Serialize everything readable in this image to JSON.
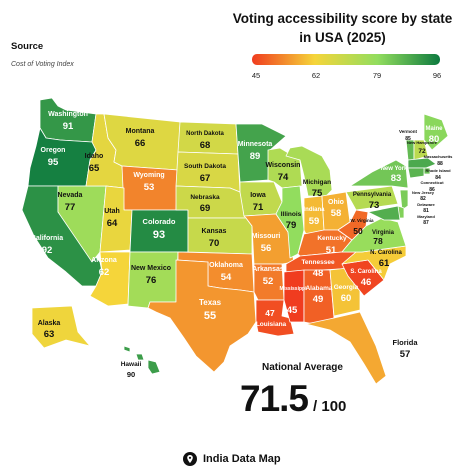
{
  "title": "Voting accessibility score by state in USA (2025)",
  "source": {
    "heading": "Source",
    "name": "Cost of Voting Index"
  },
  "legend": {
    "ticks": [
      "45",
      "62",
      "79",
      "96"
    ],
    "colors": [
      "#f03c1f",
      "#f5d53a",
      "#92dd5e",
      "#0d7a3f"
    ]
  },
  "national_average": {
    "label": "National Average",
    "value": "71.5",
    "suffix": "/ 100"
  },
  "brand": "India Data Map",
  "states": {
    "WA": {
      "name": "Washington",
      "score": "91"
    },
    "OR": {
      "name": "Oregon",
      "score": "95"
    },
    "CA": {
      "name": "California",
      "score": "92"
    },
    "NV": {
      "name": "Nevada",
      "score": "77"
    },
    "ID": {
      "name": "Idaho",
      "score": "65"
    },
    "MT": {
      "name": "Montana",
      "score": "66"
    },
    "WY": {
      "name": "Wyoming",
      "score": "53"
    },
    "UT": {
      "name": "Utah",
      "score": "64"
    },
    "AZ": {
      "name": "Arizona",
      "score": "62"
    },
    "CO": {
      "name": "Colorado",
      "score": "93"
    },
    "NM": {
      "name": "New Mexico",
      "score": "76"
    },
    "ND": {
      "name": "North Dakota",
      "score": "68"
    },
    "SD": {
      "name": "South Dakota",
      "score": "67"
    },
    "NE": {
      "name": "Nebraska",
      "score": "69"
    },
    "KS": {
      "name": "Kansas",
      "score": "70"
    },
    "OK": {
      "name": "Oklahoma",
      "score": "54"
    },
    "TX": {
      "name": "Texas",
      "score": "55"
    },
    "MN": {
      "name": "Minnesota",
      "score": "89"
    },
    "IA": {
      "name": "Iowa",
      "score": "71"
    },
    "MO": {
      "name": "Missouri",
      "score": "56"
    },
    "AR": {
      "name": "Arkansas",
      "score": "52"
    },
    "LA": {
      "name": "Louisiana",
      "score": "47"
    },
    "WI": {
      "name": "Wisconsin",
      "score": "74"
    },
    "IL": {
      "name": "Illinois",
      "score": "79"
    },
    "MI": {
      "name": "Michigan",
      "score": "75"
    },
    "IN": {
      "name": "Indiana",
      "score": "59"
    },
    "OH": {
      "name": "Ohio",
      "score": "58"
    },
    "KY": {
      "name": "Kentucky",
      "score": "51"
    },
    "TN": {
      "name": "Tennessee",
      "score": "48"
    },
    "MS": {
      "name": "Mississippi",
      "score": "45"
    },
    "AL": {
      "name": "Alabama",
      "score": "49"
    },
    "GA": {
      "name": "Georgia",
      "score": "60"
    },
    "FL": {
      "name": "Florida",
      "score": "57"
    },
    "SC": {
      "name": "S. Carolina",
      "score": "46"
    },
    "NC": {
      "name": "N. Carolina",
      "score": "61"
    },
    "VA": {
      "name": "Virginia",
      "score": "78"
    },
    "WV": {
      "name": "W. Virginia",
      "score": "50"
    },
    "PA": {
      "name": "Pennsylvania",
      "score": "73"
    },
    "NY": {
      "name": "New York",
      "score": "83"
    },
    "ME": {
      "name": "Maine",
      "score": "80"
    },
    "VT": {
      "name": "Vermont",
      "score": "85"
    },
    "NH": {
      "name": "New Hampshire",
      "score": "72"
    },
    "MA": {
      "name": "Massachusetts",
      "score": "88"
    },
    "RI": {
      "name": "Rhode Island",
      "score": "84"
    },
    "CT": {
      "name": "Connecticut",
      "score": "86"
    },
    "NJ": {
      "name": "New Jersey",
      "score": "82"
    },
    "DE": {
      "name": "Delaware",
      "score": "81"
    },
    "MD": {
      "name": "Maryland",
      "score": "87"
    },
    "AK": {
      "name": "Alaska",
      "score": "63"
    },
    "HI": {
      "name": "Hawaii",
      "score": "90"
    }
  }
}
